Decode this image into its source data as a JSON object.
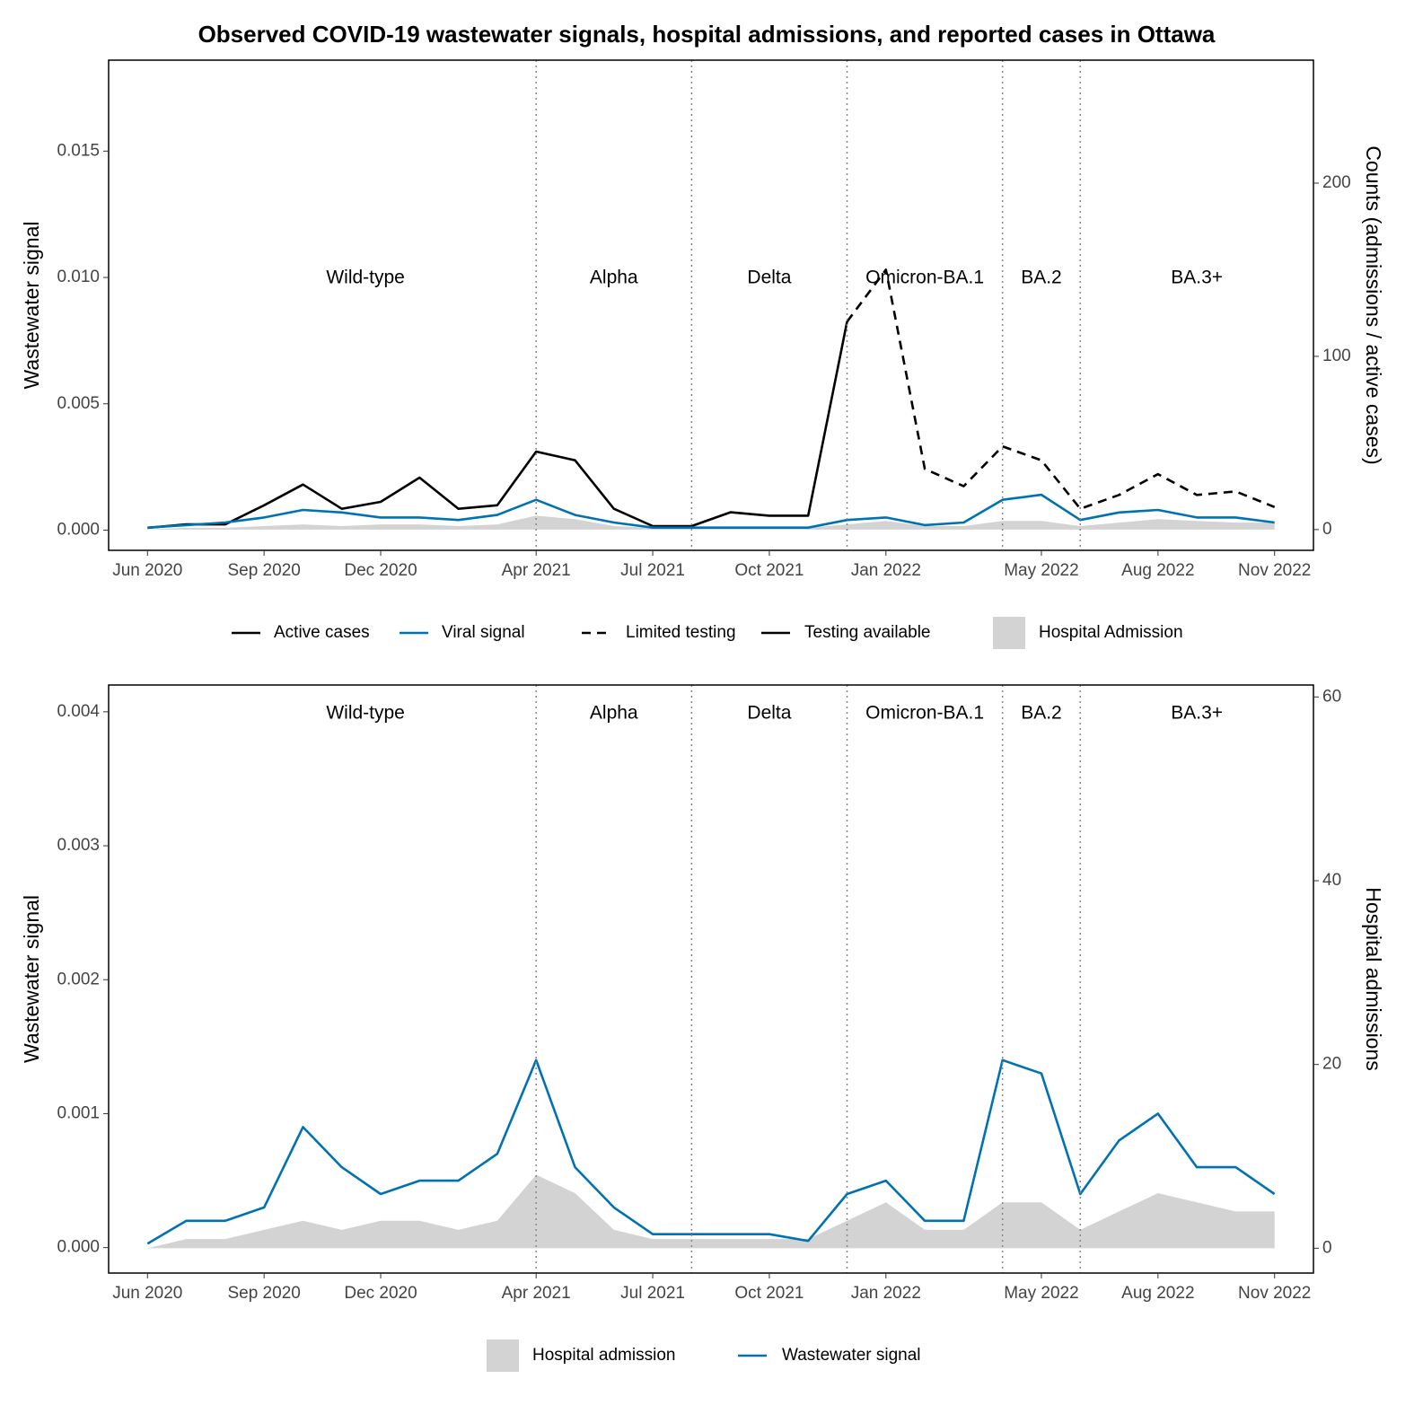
{
  "chart_data": [
    {
      "type": "line",
      "title": "Observed COVID-19 wastewater signals, hospital admissions, and reported cases in Ottawa",
      "ylabel": "Wastewater signal",
      "y2label": "Counts (admissions / active cases)",
      "x": [
        "2020-06",
        "2020-07",
        "2020-08",
        "2020-09",
        "2020-10",
        "2020-11",
        "2020-12",
        "2021-01",
        "2021-02",
        "2021-03",
        "2021-04",
        "2021-05",
        "2021-06",
        "2021-07",
        "2021-08",
        "2021-09",
        "2021-10",
        "2021-11",
        "2021-12",
        "2022-01",
        "2022-02",
        "2022-03",
        "2022-04",
        "2022-05",
        "2022-06",
        "2022-07",
        "2022-08",
        "2022-09",
        "2022-10",
        "2022-11"
      ],
      "xlim": [
        "2020-05",
        "2022-12"
      ],
      "xticks": [
        {
          "value": "2020-06",
          "label": "Jun 2020"
        },
        {
          "value": "2020-09",
          "label": "Sep 2020"
        },
        {
          "value": "2020-12",
          "label": "Dec 2020"
        },
        {
          "value": "2021-04",
          "label": "Apr 2021"
        },
        {
          "value": "2021-07",
          "label": "Jul 2021"
        },
        {
          "value": "2021-10",
          "label": "Oct 2021"
        },
        {
          "value": "2022-01",
          "label": "Jan 2022"
        },
        {
          "value": "2022-05",
          "label": "May 2022"
        },
        {
          "value": "2022-08",
          "label": "Aug 2022"
        },
        {
          "value": "2022-11",
          "label": "Nov 2022"
        }
      ],
      "ylim": [
        -0.0008,
        0.0186
      ],
      "yticks": [
        {
          "value": 0,
          "label": "0.000"
        },
        {
          "value": 0.005,
          "label": "0.005"
        },
        {
          "value": 0.01,
          "label": "0.010"
        },
        {
          "value": 0.015,
          "label": "0.015"
        }
      ],
      "y2lim": [
        -12,
        271
      ],
      "y2ticks": [
        0,
        100,
        200
      ],
      "variants": {
        "dates": [
          "2021-04",
          "2021-08",
          "2021-12",
          "2022-04",
          "2022-06"
        ],
        "labels": [
          "Wild-type",
          "Alpha",
          "Delta",
          "Omicron-BA.1",
          "BA.2",
          "BA.3+"
        ]
      },
      "series": [
        {
          "name": "Active cases",
          "color": "#000000",
          "axis": "y2",
          "series": [
            {
              "name": "Limited testing",
              "dash": "dashed",
              "values": [
                null,
                null,
                null,
                null,
                null,
                null,
                null,
                null,
                null,
                null,
                null,
                null,
                null,
                null,
                null,
                null,
                null,
                null,
                120,
                150,
                35,
                25,
                48,
                40,
                12,
                20,
                32,
                20,
                22,
                13
              ]
            },
            {
              "name": "Testing available",
              "dash": "solid",
              "values": [
                1,
                3,
                3,
                14,
                26,
                12,
                16,
                30,
                12,
                14,
                45,
                40,
                12,
                2,
                2,
                10,
                8,
                8,
                120,
                null,
                null,
                null,
                null,
                null,
                null,
                null,
                null,
                null,
                null,
                null
              ]
            }
          ]
        },
        {
          "name": "Viral signal",
          "color": "#0072b2",
          "values": [
            0.0001,
            0.0002,
            0.0003,
            0.0005,
            0.0008,
            0.0007,
            0.0005,
            0.0005,
            0.0004,
            0.0006,
            0.0012,
            0.0006,
            0.0003,
            0.0001,
            0.0001,
            0.0001,
            0.0001,
            0.0001,
            0.0004,
            0.0005,
            0.0002,
            0.0003,
            0.0012,
            0.0014,
            0.0004,
            0.0007,
            0.0008,
            0.0005,
            0.0005,
            0.0003
          ]
        },
        {
          "name": "Hospital Admission",
          "type": "area",
          "color": "#d3d3d3",
          "axis": "y2",
          "values": [
            0,
            1,
            1,
            2,
            3,
            2,
            3,
            3,
            2,
            3,
            8,
            6,
            2,
            1,
            1,
            1,
            1,
            1,
            3,
            5,
            2,
            2,
            5,
            5,
            2,
            4,
            6,
            5,
            4,
            4
          ]
        }
      ]
    },
    {
      "type": "line",
      "ylabel": "Wastewater signal",
      "y2label": "Hospital admissions",
      "x": [
        "2020-06",
        "2020-07",
        "2020-08",
        "2020-09",
        "2020-10",
        "2020-11",
        "2020-12",
        "2021-01",
        "2021-02",
        "2021-03",
        "2021-04",
        "2021-05",
        "2021-06",
        "2021-07",
        "2021-08",
        "2021-09",
        "2021-10",
        "2021-11",
        "2021-12",
        "2022-01",
        "2022-02",
        "2022-03",
        "2022-04",
        "2022-05",
        "2022-06",
        "2022-07",
        "2022-08",
        "2022-09",
        "2022-10",
        "2022-11"
      ],
      "xlim": [
        "2020-05",
        "2022-12"
      ],
      "xticks": [
        {
          "value": "2020-06",
          "label": "Jun 2020"
        },
        {
          "value": "2020-09",
          "label": "Sep 2020"
        },
        {
          "value": "2020-12",
          "label": "Dec 2020"
        },
        {
          "value": "2021-04",
          "label": "Apr 2021"
        },
        {
          "value": "2021-07",
          "label": "Jul 2021"
        },
        {
          "value": "2021-10",
          "label": "Oct 2021"
        },
        {
          "value": "2022-01",
          "label": "Jan 2022"
        },
        {
          "value": "2022-05",
          "label": "May 2022"
        },
        {
          "value": "2022-08",
          "label": "Aug 2022"
        },
        {
          "value": "2022-11",
          "label": "Nov 2022"
        }
      ],
      "ylim": [
        -0.00019,
        0.0042
      ],
      "yticks": [
        {
          "value": 0,
          "label": "0.000"
        },
        {
          "value": 0.001,
          "label": "0.001"
        },
        {
          "value": 0.002,
          "label": "0.002"
        },
        {
          "value": 0.003,
          "label": "0.003"
        },
        {
          "value": 0.004,
          "label": "0.004"
        }
      ],
      "y2lim": [
        -2.7,
        61.3
      ],
      "y2ticks": [
        0,
        20,
        40,
        60
      ],
      "variants": {
        "dates": [
          "2021-04",
          "2021-08",
          "2021-12",
          "2022-04",
          "2022-06"
        ],
        "labels": [
          "Wild-type",
          "Alpha",
          "Delta",
          "Omicron-BA.1",
          "BA.2",
          "BA.3+"
        ]
      },
      "series": [
        {
          "name": "Hospital admission",
          "type": "area",
          "color": "#d3d3d3",
          "axis": "y2",
          "values": [
            0,
            1,
            1,
            2,
            3,
            2,
            3,
            3,
            2,
            3,
            8,
            6,
            2,
            1,
            1,
            1,
            1,
            1,
            3,
            5,
            2,
            2,
            5,
            5,
            2,
            4,
            6,
            5,
            4,
            4
          ]
        },
        {
          "name": "Wastewater signal",
          "color": "#0072b2",
          "values": [
            3e-05,
            0.0002,
            0.0002,
            0.0003,
            0.0009,
            0.0006,
            0.0004,
            0.0005,
            0.0005,
            0.0007,
            0.0014,
            0.0006,
            0.0003,
            0.0001,
            0.0001,
            0.0001,
            0.0001,
            5e-05,
            0.0004,
            0.0005,
            0.0002,
            0.0002,
            0.0014,
            0.0013,
            0.0004,
            0.0008,
            0.001,
            0.0006,
            0.0006,
            0.0004
          ]
        }
      ]
    }
  ]
}
